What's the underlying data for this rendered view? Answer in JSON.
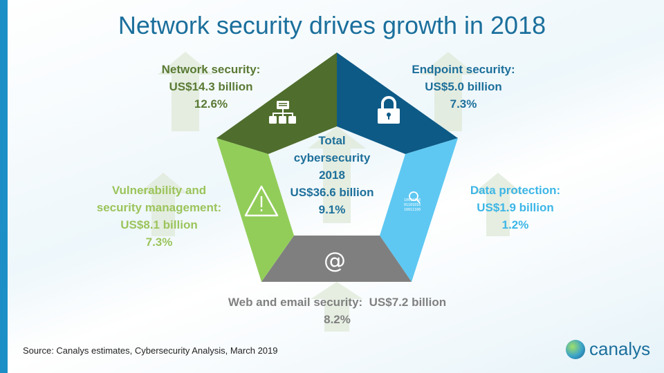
{
  "chart_data": {
    "type": "pentagon-infographic",
    "title": "Network security drives growth in 2018",
    "total": {
      "lines": [
        "Total",
        "cybersecurity",
        "2018"
      ],
      "value_text": "US$36.6 billion",
      "growth_text": "9.1%",
      "value": 36.6,
      "growth": 9.1
    },
    "segments": [
      {
        "name": "Network security:",
        "value_text": "US$14.3 billion",
        "growth_text": "12.6%",
        "value": 14.3,
        "growth": 12.6,
        "color": "#4f6d2c",
        "text_color": "#5a7a34",
        "icon": "network-hierarchy-icon"
      },
      {
        "name": "Endpoint security:",
        "value_text": "US$5.0 billion",
        "growth_text": "7.3%",
        "value": 5.0,
        "growth": 7.3,
        "color": "#0d5a86",
        "text_color": "#1d6f9a",
        "icon": "padlock-icon"
      },
      {
        "name": "Data protection:",
        "value_text": "US$1.9 billion",
        "growth_text": "1.2%",
        "value": 1.9,
        "growth": 1.2,
        "color": "#5ec8f2",
        "text_color": "#3db6e6",
        "icon": "binary-magnifier-icon"
      },
      {
        "name": "Web and email security:",
        "value_text": "US$7.2 billion",
        "growth_text": "8.2%",
        "value": 7.2,
        "growth": 8.2,
        "color": "#7f7f7f",
        "text_color": "#808080",
        "icon": "at-sign-icon"
      },
      {
        "name": "Vulnerability and security management:",
        "name_lines": [
          "Vulnerability  and",
          "security  management:"
        ],
        "value_text": "US$8.1 billion",
        "growth_text": "7.3%",
        "value": 8.1,
        "growth": 7.3,
        "color": "#92cd5a",
        "text_color": "#9bc45b",
        "icon": "warning-triangle-icon"
      }
    ]
  },
  "footer": {
    "source": "Source:  Canalys estimates, Cybersecurity Analysis, March 2019"
  },
  "logo": {
    "text": "canalys"
  },
  "icons": {
    "binary_lines": [
      "10011100",
      "01101010",
      "10011100"
    ],
    "at_glyph": "@"
  }
}
